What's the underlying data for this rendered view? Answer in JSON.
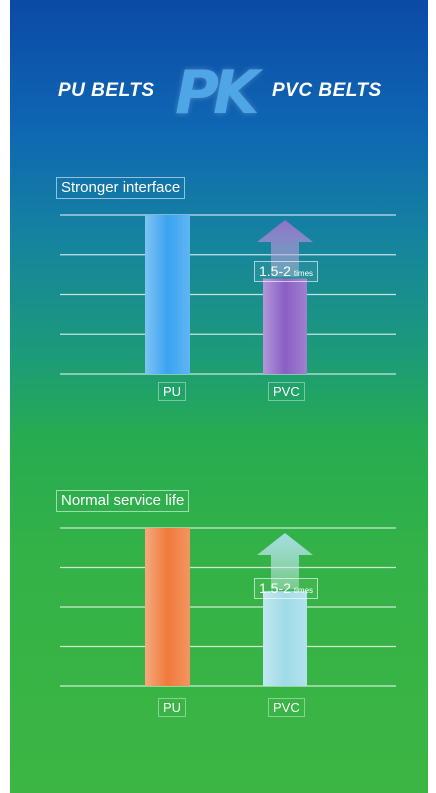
{
  "header": {
    "left": "PU BELTS",
    "middle": "PK",
    "right": "PVC BELTS"
  },
  "chart_data": [
    {
      "type": "bar",
      "title": "Stronger interface",
      "categories": [
        "PU",
        "PVC"
      ],
      "values": [
        1.0,
        0.6
      ],
      "annotation": {
        "number": "1.5-2",
        "unit": "times"
      },
      "colors": {
        "PU": "#3aa3f0",
        "PVC": "#8a5fc4"
      }
    },
    {
      "type": "bar",
      "title": "Normal service life",
      "categories": [
        "PU",
        "PVC"
      ],
      "values": [
        1.0,
        0.6
      ],
      "annotation": {
        "number": "1.5-2",
        "unit": "times"
      },
      "colors": {
        "PU": "#f07a3a",
        "PVC": "#9fdbe8"
      }
    }
  ]
}
